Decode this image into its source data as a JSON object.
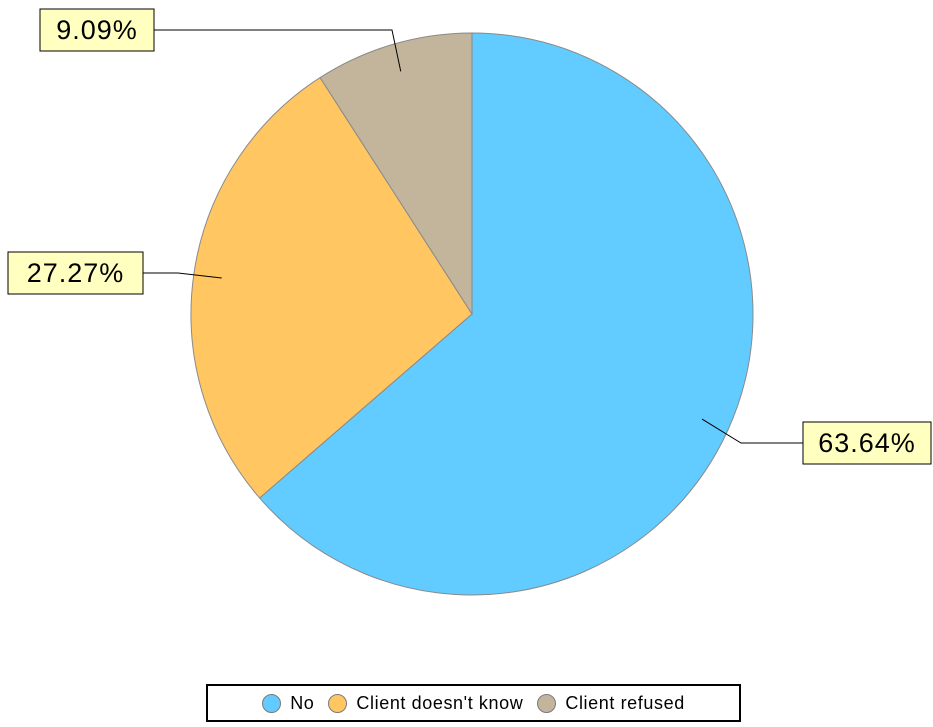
{
  "chart_data": {
    "type": "pie",
    "slices": [
      {
        "label": "No",
        "value": 63.64,
        "display": "63.64%",
        "color": "#62CBFF"
      },
      {
        "label": "Client doesn't know",
        "value": 27.27,
        "display": "27.27%",
        "color": "#FFC662"
      },
      {
        "label": "Client refused",
        "value": 9.09,
        "display": "9.09%",
        "color": "#C2B59B"
      }
    ],
    "legend_position": "bottom",
    "label_style": {
      "background": "#FFFFC0",
      "border": "#000000"
    }
  }
}
